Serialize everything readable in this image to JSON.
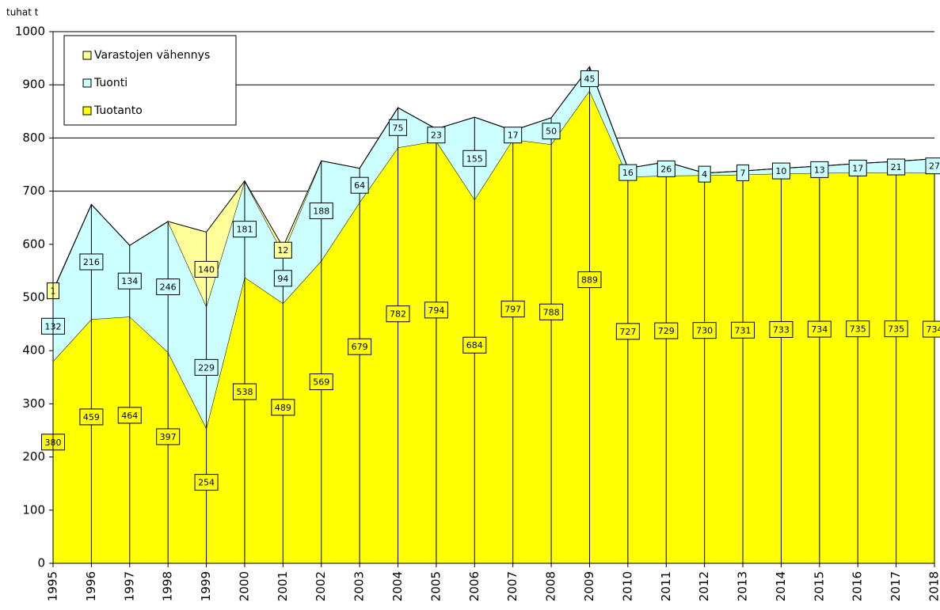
{
  "chart_data": {
    "type": "stacked_area",
    "y_label": "tuhat t",
    "categories": [
      "1995",
      "1996",
      "1997",
      "1998",
      "1999",
      "2000",
      "2001",
      "2002",
      "2003",
      "2004",
      "2005",
      "2006",
      "2007",
      "2008",
      "2009",
      "2010",
      "2011",
      "2012",
      "2013",
      "2014",
      "2015",
      "2016",
      "2017",
      "2018"
    ],
    "series": [
      {
        "name": "Tuotanto",
        "color": "#ffff00",
        "values": [
          380,
          459,
          464,
          397,
          254,
          538,
          489,
          569,
          679,
          782,
          794,
          684,
          797,
          788,
          889,
          727,
          729,
          730,
          731,
          733,
          734,
          735,
          735,
          734
        ]
      },
      {
        "name": "Tuonti",
        "color": "#ccffff",
        "values": [
          132,
          216,
          134,
          246,
          229,
          181,
          94,
          188,
          64,
          75,
          23,
          155,
          17,
          50,
          45,
          16,
          26,
          4,
          7,
          10,
          13,
          17,
          21,
          27
        ]
      },
      {
        "name": "Varastojen vähennys",
        "color": "#ffff99",
        "values": [
          1,
          0,
          0,
          0,
          140,
          0,
          12,
          0,
          0,
          0,
          0,
          0,
          0,
          0,
          0,
          0,
          0,
          0,
          0,
          0,
          0,
          0,
          0,
          0
        ]
      }
    ],
    "ylim": [
      0,
      1000
    ],
    "yticks": [
      0,
      100,
      200,
      300,
      400,
      500,
      600,
      700,
      800,
      900,
      1000
    ],
    "grid_lines": [
      700,
      800,
      900,
      1000
    ],
    "legend": "upper left"
  }
}
